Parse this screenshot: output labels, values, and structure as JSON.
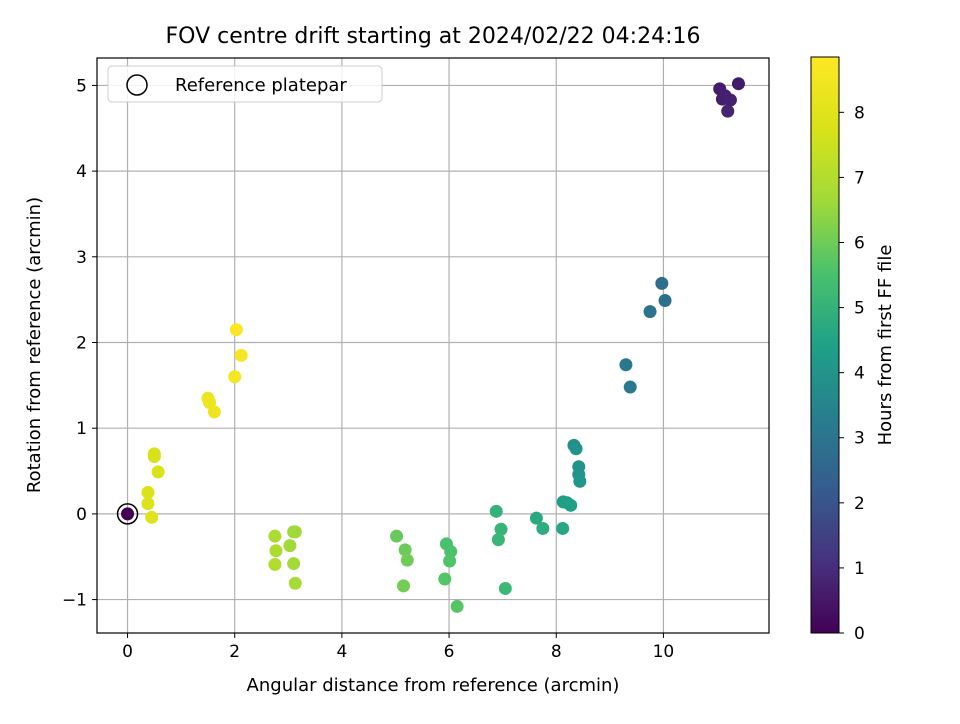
{
  "chart_data": {
    "type": "scatter",
    "title": "FOV centre drift starting at 2024/02/22 04:24:16",
    "xlabel": "Angular distance from reference (arcmin)",
    "ylabel": "Rotation from reference (arcmin)",
    "xlim": [
      -0.57,
      11.97
    ],
    "ylim": [
      -1.39,
      5.32
    ],
    "xticks": [
      0,
      2,
      4,
      6,
      8,
      10
    ],
    "yticks": [
      -1,
      0,
      1,
      2,
      3,
      4,
      5
    ],
    "grid": true,
    "legend": {
      "position": "top-left",
      "entries": [
        "Reference platepar"
      ]
    },
    "colorbar": {
      "label": "Hours from first FF file",
      "range": [
        0,
        8.85
      ],
      "ticks": [
        0,
        1,
        2,
        3,
        4,
        5,
        6,
        7,
        8
      ],
      "colormap": "viridis"
    },
    "reference_point": {
      "x": 0,
      "y": 0,
      "hours": 0
    },
    "points": [
      {
        "x": 11.05,
        "y": 4.96,
        "hours": 0.6
      },
      {
        "x": 11.1,
        "y": 4.84,
        "hours": 0.65
      },
      {
        "x": 11.15,
        "y": 4.88,
        "hours": 0.7
      },
      {
        "x": 11.25,
        "y": 4.83,
        "hours": 0.75
      },
      {
        "x": 11.2,
        "y": 4.7,
        "hours": 0.8
      },
      {
        "x": 11.4,
        "y": 5.02,
        "hours": 0.55
      },
      {
        "x": 9.97,
        "y": 2.69,
        "hours": 2.8
      },
      {
        "x": 10.03,
        "y": 2.49,
        "hours": 2.85
      },
      {
        "x": 9.75,
        "y": 2.36,
        "hours": 2.9
      },
      {
        "x": 9.3,
        "y": 1.74,
        "hours": 3.1
      },
      {
        "x": 9.38,
        "y": 1.48,
        "hours": 3.15
      },
      {
        "x": 8.33,
        "y": 0.8,
        "hours": 3.9
      },
      {
        "x": 8.37,
        "y": 0.76,
        "hours": 3.95
      },
      {
        "x": 8.42,
        "y": 0.55,
        "hours": 4.0
      },
      {
        "x": 8.42,
        "y": 0.46,
        "hours": 4.05
      },
      {
        "x": 8.44,
        "y": 0.38,
        "hours": 4.1
      },
      {
        "x": 8.13,
        "y": 0.14,
        "hours": 4.3
      },
      {
        "x": 8.2,
        "y": 0.13,
        "hours": 4.35
      },
      {
        "x": 8.27,
        "y": 0.1,
        "hours": 4.4
      },
      {
        "x": 8.12,
        "y": -0.17,
        "hours": 4.6
      },
      {
        "x": 7.63,
        "y": -0.05,
        "hours": 4.7
      },
      {
        "x": 7.75,
        "y": -0.17,
        "hours": 4.8
      },
      {
        "x": 6.88,
        "y": 0.03,
        "hours": 5.0
      },
      {
        "x": 6.97,
        "y": -0.18,
        "hours": 5.05
      },
      {
        "x": 6.92,
        "y": -0.3,
        "hours": 5.1
      },
      {
        "x": 7.05,
        "y": -0.87,
        "hours": 5.2
      },
      {
        "x": 5.95,
        "y": -0.35,
        "hours": 5.5
      },
      {
        "x": 6.03,
        "y": -0.44,
        "hours": 5.55
      },
      {
        "x": 6.01,
        "y": -0.55,
        "hours": 5.6
      },
      {
        "x": 5.92,
        "y": -0.76,
        "hours": 5.65
      },
      {
        "x": 6.15,
        "y": -1.08,
        "hours": 5.7
      },
      {
        "x": 5.02,
        "y": -0.26,
        "hours": 5.9
      },
      {
        "x": 5.18,
        "y": -0.42,
        "hours": 5.95
      },
      {
        "x": 5.22,
        "y": -0.54,
        "hours": 6.0
      },
      {
        "x": 5.15,
        "y": -0.84,
        "hours": 6.05
      },
      {
        "x": 3.1,
        "y": -0.21,
        "hours": 6.6
      },
      {
        "x": 3.13,
        "y": -0.21,
        "hours": 6.62
      },
      {
        "x": 3.03,
        "y": -0.37,
        "hours": 6.65
      },
      {
        "x": 3.1,
        "y": -0.58,
        "hours": 6.7
      },
      {
        "x": 3.13,
        "y": -0.81,
        "hours": 6.75
      },
      {
        "x": 2.75,
        "y": -0.26,
        "hours": 6.85
      },
      {
        "x": 2.77,
        "y": -0.43,
        "hours": 6.9
      },
      {
        "x": 2.75,
        "y": -0.59,
        "hours": 6.95
      },
      {
        "x": 0.5,
        "y": 0.7,
        "hours": 7.7
      },
      {
        "x": 0.5,
        "y": 0.67,
        "hours": 7.75
      },
      {
        "x": 0.57,
        "y": 0.49,
        "hours": 7.8
      },
      {
        "x": 0.38,
        "y": 0.25,
        "hours": 7.85
      },
      {
        "x": 0.38,
        "y": 0.12,
        "hours": 7.9
      },
      {
        "x": 0.45,
        "y": -0.04,
        "hours": 7.95
      },
      {
        "x": 1.5,
        "y": 1.35,
        "hours": 8.3
      },
      {
        "x": 1.53,
        "y": 1.3,
        "hours": 8.35
      },
      {
        "x": 1.62,
        "y": 1.19,
        "hours": 8.4
      },
      {
        "x": 2.0,
        "y": 1.6,
        "hours": 8.6
      },
      {
        "x": 2.12,
        "y": 1.85,
        "hours": 8.7
      },
      {
        "x": 2.03,
        "y": 2.15,
        "hours": 8.8
      }
    ]
  }
}
